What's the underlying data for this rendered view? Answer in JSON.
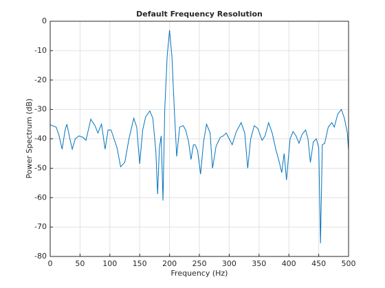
{
  "chart_data": {
    "type": "line",
    "title": "Default Frequency Resolution",
    "xlabel": "Frequency (Hz)",
    "ylabel": "Power Spectrum (dB)",
    "x": [
      0,
      10,
      15,
      20,
      25,
      28,
      33,
      37,
      42,
      48,
      55,
      60,
      68,
      75,
      80,
      86,
      92,
      97,
      102,
      107,
      112,
      118,
      125,
      132,
      140,
      145,
      150,
      155,
      160,
      167,
      172,
      177,
      180,
      183,
      186,
      189,
      192,
      196,
      200,
      204,
      208,
      212,
      217,
      223,
      227,
      232,
      236,
      240,
      243,
      247,
      252,
      257,
      262,
      268,
      272,
      278,
      285,
      290,
      295,
      300,
      305,
      312,
      320,
      326,
      331,
      336,
      342,
      348,
      355,
      360,
      366,
      372,
      378,
      384,
      388,
      392,
      396,
      402,
      407,
      412,
      417,
      422,
      428,
      432,
      436,
      441,
      446,
      450,
      453,
      456,
      460,
      466,
      472,
      476,
      482,
      488,
      493,
      498,
      500
    ],
    "series": [
      {
        "name": "Power Spectrum",
        "color": "#0072bd",
        "values": [
          -35.2,
          -36,
          -39,
          -43.5,
          -37,
          -35,
          -40,
          -43.5,
          -40,
          -39,
          -39.5,
          -40.5,
          -33.3,
          -35.5,
          -38,
          -35,
          -43.5,
          -37,
          -37,
          -40,
          -43,
          -49.5,
          -48,
          -40,
          -33,
          -36,
          -48.5,
          -37,
          -32.5,
          -30.5,
          -33,
          -44,
          -58.8,
          -43,
          -39,
          -61,
          -30,
          -12,
          -3,
          -12,
          -30,
          -46,
          -36,
          -35.5,
          -37,
          -41,
          -47,
          -42,
          -42,
          -44,
          -52,
          -41,
          -35,
          -38,
          -50,
          -42.5,
          -39.5,
          -39,
          -38,
          -40,
          -42,
          -37.5,
          -34.5,
          -38,
          -50,
          -40,
          -35.5,
          -36.5,
          -40.5,
          -39,
          -34.5,
          -38,
          -43.5,
          -48,
          -51.5,
          -45,
          -54,
          -40,
          -37.5,
          -39,
          -41.5,
          -38.5,
          -37,
          -40,
          -48,
          -41,
          -40,
          -43,
          -75.5,
          -42,
          -41.5,
          -36,
          -34.5,
          -36,
          -31.5,
          -30,
          -33,
          -38,
          -44
        ]
      }
    ],
    "xlim": [
      0,
      500
    ],
    "ylim": [
      -80,
      0
    ],
    "xticks": [
      0,
      50,
      100,
      150,
      200,
      250,
      300,
      350,
      400,
      450,
      500
    ],
    "yticks": [
      0,
      -10,
      -20,
      -30,
      -40,
      -50,
      -60,
      -70,
      -80
    ],
    "grid": true
  }
}
